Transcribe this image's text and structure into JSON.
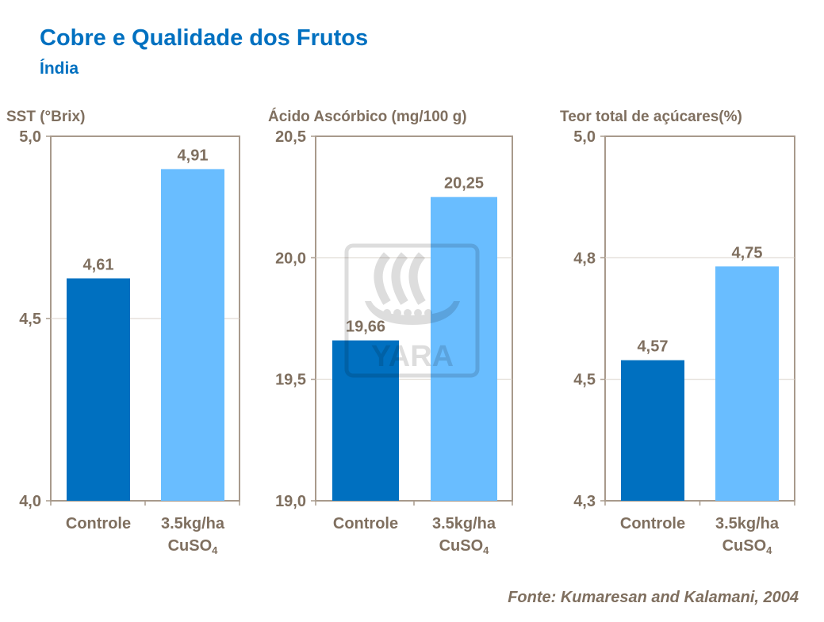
{
  "header": {
    "title": "Cobre e Qualidade dos Frutos",
    "subtitle": "Índia"
  },
  "source": "Fonte: Kumaresan  and Kalamani,  2004",
  "watermark": {
    "logo_text": "YARA"
  },
  "colors": {
    "title": "#0070C0",
    "text": "#7F6F5F",
    "controle": "#0070C0",
    "tratamento": "#69BDFF",
    "axis": "#A89A8C"
  },
  "chart_data": [
    {
      "type": "bar",
      "title": "SST (°Brix)",
      "categories": [
        "Controle",
        "3.5kg/ha CuSO4"
      ],
      "category_lines": [
        [
          "Controle"
        ],
        [
          "3.5kg/ha",
          "CuSO",
          "4"
        ]
      ],
      "values": [
        4.61,
        4.91
      ],
      "data_labels": [
        "4,61",
        "4,91"
      ],
      "ylim": [
        4.0,
        5.0
      ],
      "yticks": [
        4.0,
        4.5,
        5.0
      ],
      "ytick_labels": [
        "4,0",
        "4,5",
        "5,0"
      ],
      "grid": true
    },
    {
      "type": "bar",
      "title": "Ácido Ascórbico (mg/100 g)",
      "categories": [
        "Controle",
        "3.5kg/ha CuSO4"
      ],
      "category_lines": [
        [
          "Controle"
        ],
        [
          "3.5kg/ha",
          "CuSO",
          "4"
        ]
      ],
      "values": [
        19.66,
        20.25
      ],
      "data_labels": [
        "19,66",
        "20,25"
      ],
      "ylim": [
        19.0,
        20.5
      ],
      "yticks": [
        19.0,
        19.5,
        20.0,
        20.5
      ],
      "ytick_labels": [
        "19,0",
        "19,5",
        "20,0",
        "20,5"
      ],
      "grid": true
    },
    {
      "type": "bar",
      "title": "Teor total de açúcares(%)",
      "categories": [
        "Controle",
        "3.5kg/ha CuSO4"
      ],
      "category_lines": [
        [
          "Controle"
        ],
        [
          "3.5kg/ha",
          "CuSO",
          "4"
        ]
      ],
      "values": [
        4.57,
        4.75
      ],
      "data_labels": [
        "4,57",
        "4,75"
      ],
      "ylim": [
        4.3,
        5.0
      ],
      "yticks": [
        4.3,
        4.5333,
        4.7667,
        5.0
      ],
      "ytick_labels": [
        "4,3",
        "4,5",
        "4,8",
        "5,0"
      ],
      "grid": true
    }
  ]
}
